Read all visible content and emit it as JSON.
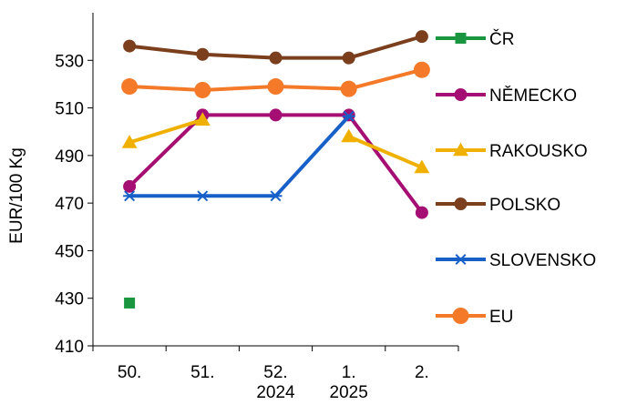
{
  "chart_data": {
    "type": "line",
    "categories": [
      "50.",
      "51.",
      "52.\n2024",
      "1.\n2025",
      "2."
    ],
    "xlabel": "",
    "ylabel": "EUR/100 Kg",
    "ylim": [
      410,
      550
    ],
    "yticks": [
      410,
      430,
      450,
      470,
      490,
      510,
      530
    ],
    "grid": false,
    "legend": "right",
    "series": [
      {
        "name": "ČR",
        "color": "#1a9641",
        "marker": "square",
        "values": [
          428,
          null,
          null,
          null,
          null
        ]
      },
      {
        "name": "NĚMECKO",
        "color": "#a50f73",
        "marker": "circle",
        "values": [
          477,
          507,
          507,
          507,
          466
        ]
      },
      {
        "name": "RAKOUSKO",
        "color": "#f0b000",
        "marker": "triangle",
        "values": [
          495.5,
          505,
          null,
          498,
          485
        ]
      },
      {
        "name": "POLSKO",
        "color": "#7b3f1d",
        "marker": "circle",
        "values": [
          536,
          532.5,
          531,
          531,
          540
        ]
      },
      {
        "name": "SLOVENSKO",
        "color": "#1760c8",
        "marker": "star",
        "values": [
          473,
          473,
          473,
          506.5,
          null
        ]
      },
      {
        "name": "EU",
        "color": "#f47a2a",
        "marker": "circle",
        "values": [
          519,
          517.5,
          519,
          518,
          526
        ]
      }
    ]
  }
}
